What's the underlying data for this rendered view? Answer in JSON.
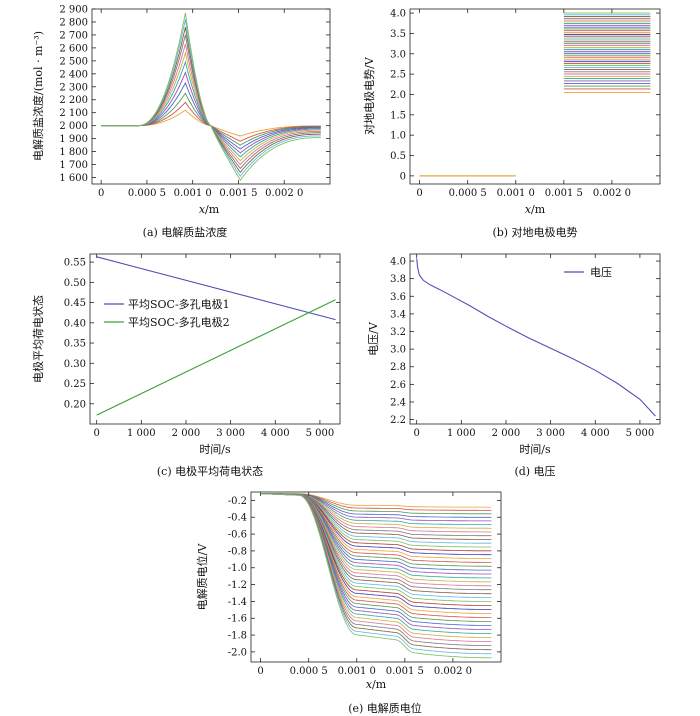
{
  "chart_data": [
    {
      "id": "a",
      "type": "line",
      "caption": "(a)  电解质盐浓度",
      "xlabel_var": "x",
      "xlabel_unit": "/m",
      "ylabel": "电解质盐浓度/(mol · m⁻³)",
      "xlim": [
        -0.0001,
        0.0025
      ],
      "ylim": [
        1550,
        2900
      ],
      "xticks": [
        0,
        0.0005,
        0.001,
        0.0015,
        0.002
      ],
      "xtick_labels": [
        "0",
        "0.000 5",
        "0.001 0",
        "0.001 5",
        "0.002 0"
      ],
      "yticks": [
        1600,
        1700,
        1800,
        1900,
        2000,
        2100,
        2200,
        2300,
        2400,
        2500,
        2600,
        2700,
        2800,
        2900
      ],
      "ytick_labels": [
        "1 600",
        "1 700",
        "1 800",
        "1 900",
        "2 000",
        "2 100",
        "2 200",
        "2 300",
        "2 400",
        "2 500",
        "2 600",
        "2 700",
        "2 800",
        "2 900"
      ],
      "base_value": 2000,
      "family": {
        "count": 12,
        "peak_x": 0.00092,
        "peak_values": [
          2120,
          2180,
          2250,
          2330,
          2410,
          2490,
          2560,
          2630,
          2700,
          2760,
          2820,
          2870
        ],
        "trough_x": 0.00152,
        "trough_values": [
          1920,
          1880,
          1850,
          1820,
          1790,
          1760,
          1730,
          1700,
          1670,
          1640,
          1610,
          1580
        ],
        "cross_x": 0.0012
      }
    },
    {
      "id": "b",
      "type": "line",
      "caption": "(b)  对地电极电势",
      "xlabel_var": "x",
      "xlabel_unit": "/m",
      "ylabel": "对地电极电势/V",
      "xlim": [
        -0.0001,
        0.0025
      ],
      "ylim": [
        -0.2,
        4.1
      ],
      "xticks": [
        0,
        0.0005,
        0.001,
        0.0015,
        0.002
      ],
      "xtick_labels": [
        "0",
        "0.000 5",
        "0.001 0",
        "0.001 5",
        "0.002 0"
      ],
      "yticks": [
        0,
        0.5,
        1.0,
        1.5,
        2.0,
        2.5,
        3.0,
        3.5,
        4.0
      ],
      "ytick_labels": [
        "0",
        "0.5",
        "1.0",
        "1.5",
        "2.0",
        "2.5",
        "3.0",
        "3.5",
        "4.0"
      ],
      "segments": {
        "left_x": [
          0,
          0.001
        ],
        "left_value": 0,
        "right_x": [
          0.0015,
          0.0024
        ],
        "right_values_range": [
          2.05,
          4.0
        ],
        "count": 40
      }
    },
    {
      "id": "c",
      "type": "line",
      "caption": "(c)  电极平均荷电状态",
      "xlabel": "时间/s",
      "ylabel": "电极平均荷电状态",
      "xlim": [
        -150,
        5450
      ],
      "ylim": [
        0.15,
        0.57
      ],
      "xticks": [
        0,
        1000,
        2000,
        3000,
        4000,
        5000
      ],
      "xtick_labels": [
        "0",
        "1 000",
        "2 000",
        "3 000",
        "4 000",
        "5 000"
      ],
      "yticks": [
        0.2,
        0.25,
        0.3,
        0.35,
        0.4,
        0.45,
        0.5,
        0.55
      ],
      "ytick_labels": [
        "0.20",
        "0.25",
        "0.30",
        "0.35",
        "0.40",
        "0.45",
        "0.50",
        "0.55"
      ],
      "series": [
        {
          "name": "平均SOC-多孔电极1",
          "color": "#5050b8",
          "x": [
            0,
            5350
          ],
          "y": [
            0.563,
            0.408
          ]
        },
        {
          "name": "平均SOC-多孔电极2",
          "color": "#3aa23a",
          "x": [
            0,
            5350
          ],
          "y": [
            0.172,
            0.457
          ]
        }
      ],
      "legend": "left-center"
    },
    {
      "id": "d",
      "type": "line",
      "caption": "(d)  电压",
      "xlabel": "时间/s",
      "ylabel": "电压/V",
      "xlim": [
        -150,
        5450
      ],
      "ylim": [
        2.15,
        4.08
      ],
      "xticks": [
        0,
        1000,
        2000,
        3000,
        4000,
        5000
      ],
      "xtick_labels": [
        "0",
        "1 000",
        "2 000",
        "3 000",
        "4 000",
        "5 000"
      ],
      "yticks": [
        2.2,
        2.4,
        2.6,
        2.8,
        3.0,
        3.2,
        3.4,
        3.6,
        3.8,
        4.0
      ],
      "ytick_labels": [
        "2.2",
        "2.4",
        "2.6",
        "2.8",
        "3.0",
        "3.2",
        "3.4",
        "3.6",
        "3.8",
        "4.0"
      ],
      "series": [
        {
          "name": "电压",
          "color": "#5050b8",
          "x": [
            0,
            20,
            60,
            150,
            300,
            500,
            800,
            1200,
            1600,
            2000,
            2500,
            3000,
            3500,
            4000,
            4500,
            5000,
            5350
          ],
          "y": [
            4.03,
            3.93,
            3.84,
            3.78,
            3.73,
            3.68,
            3.6,
            3.49,
            3.37,
            3.26,
            3.13,
            3.01,
            2.89,
            2.76,
            2.61,
            2.43,
            2.24
          ]
        }
      ],
      "legend": "top-right"
    },
    {
      "id": "e",
      "type": "line",
      "caption": "(e)  电解质电位",
      "xlabel_var": "x",
      "xlabel_unit": "/m",
      "ylabel": "电解质电位/V",
      "xlim": [
        -0.0001,
        0.0025
      ],
      "ylim": [
        -2.12,
        -0.1
      ],
      "xticks": [
        0,
        0.0005,
        0.001,
        0.0015,
        0.002
      ],
      "xtick_labels": [
        "0",
        "0.000 5",
        "0.001 0",
        "0.001 5",
        "0.002 0"
      ],
      "yticks": [
        -0.2,
        -0.4,
        -0.6,
        -0.8,
        -1.0,
        -1.2,
        -1.4,
        -1.6,
        -1.8,
        -2.0
      ],
      "ytick_labels": [
        "-0.2",
        "-0.4",
        "-0.6",
        "-0.8",
        "-1.0",
        "-1.2",
        "-1.4",
        "-1.6",
        "-1.8",
        "-2.0"
      ],
      "family": {
        "count": 40,
        "start_value": -0.12,
        "final_range": [
          -0.28,
          -2.07
        ]
      }
    }
  ],
  "palette": [
    "#e8a33c",
    "#d94f4f",
    "#4b9e4b",
    "#4a66c8",
    "#9a4fb0",
    "#2fa7a7",
    "#c9b23a",
    "#d9749a",
    "#7a7a7a",
    "#8c5a3c",
    "#5bb8e8",
    "#7ac05a",
    "#b03a3a",
    "#3a3ab0"
  ]
}
